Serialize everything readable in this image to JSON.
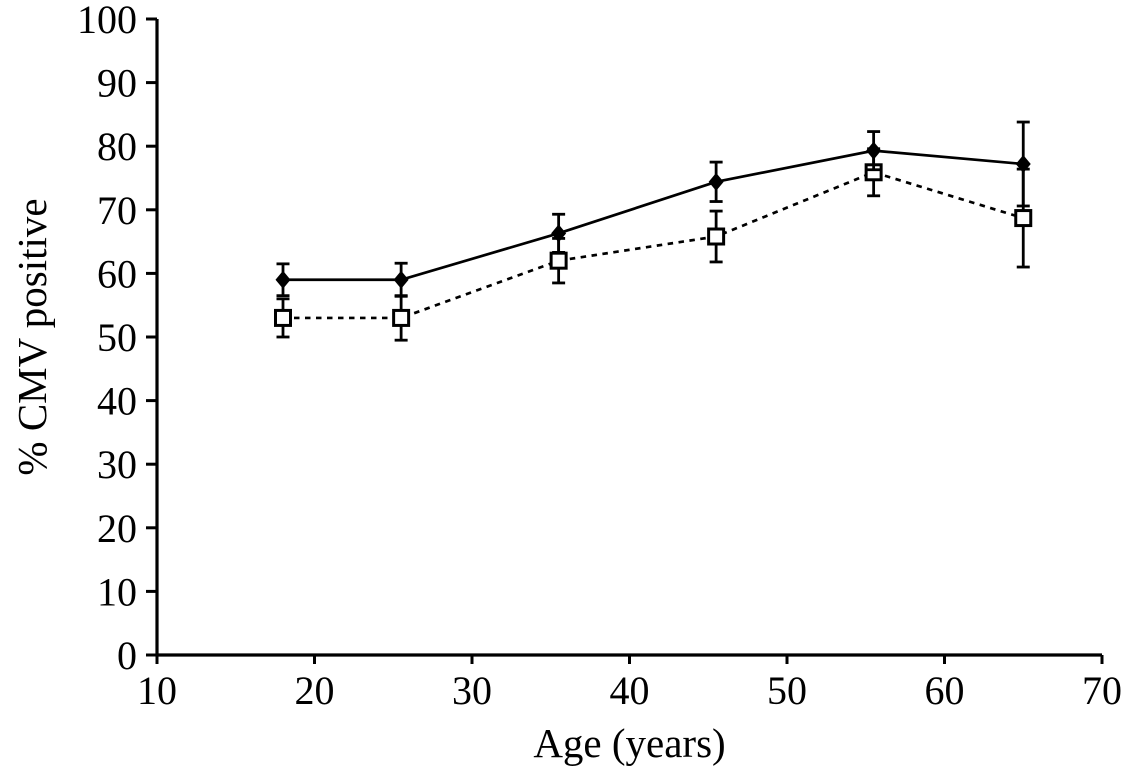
{
  "figure": {
    "background_color": "#ffffff",
    "ink_color": "#000000"
  },
  "chart_data": {
    "type": "line",
    "title": "",
    "xlabel": "Age (years)",
    "ylabel": "% CMV positive",
    "xlim": [
      10,
      70
    ],
    "ylim": [
      0,
      100
    ],
    "x_ticks": [
      10,
      20,
      30,
      40,
      50,
      60,
      70
    ],
    "y_ticks": [
      0,
      10,
      20,
      30,
      40,
      50,
      60,
      70,
      80,
      90,
      100
    ],
    "grid": "off",
    "legend": "none",
    "x": [
      18,
      25.5,
      35.5,
      45.5,
      55.5,
      65
    ],
    "series": [
      {
        "name": "filled diamonds, solid line",
        "marker": "filled-diamond",
        "line_style": "solid",
        "values": [
          59.0,
          59.0,
          66.3,
          74.4,
          79.3,
          77.2
        ],
        "errors": [
          2.5,
          2.6,
          3.0,
          3.1,
          3.0,
          6.6
        ]
      },
      {
        "name": "open squares, dotted line",
        "marker": "open-square",
        "line_style": "dotted",
        "values": [
          53.0,
          53.0,
          62.0,
          65.8,
          75.9,
          68.7
        ],
        "errors": [
          3.0,
          3.5,
          3.5,
          4.0,
          3.7,
          7.7
        ]
      }
    ]
  }
}
